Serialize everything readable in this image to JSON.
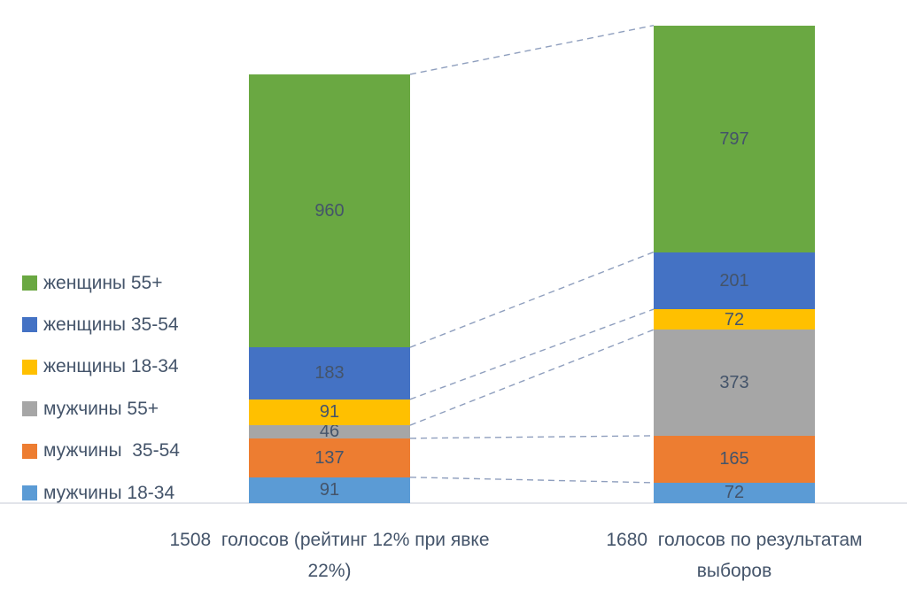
{
  "chart_data": {
    "type": "bar",
    "stacked": true,
    "orientation": "vertical",
    "grid": false,
    "legend_position": "left",
    "categories": [
      {
        "total": 1508,
        "label": "1508  голосов (рейтинг 12% при явке 22%)",
        "label_lines": [
          "1508  голосов (рейтинг 12% при явке",
          "22%)"
        ]
      },
      {
        "total": 1680,
        "label": "1680  голосов по результатам выборов",
        "label_lines": [
          "1680  голосов по результатам",
          "выборов"
        ]
      }
    ],
    "series_bottom_to_top": [
      {
        "name": "мужчины 18-34",
        "color": "#5b9bd5",
        "values": [
          91,
          72
        ]
      },
      {
        "name": "мужчины  35-54",
        "color": "#ed7d31",
        "values": [
          137,
          165
        ]
      },
      {
        "name": "мужчины 55+",
        "color": "#a6a6a6",
        "values": [
          46,
          373
        ]
      },
      {
        "name": "женщины 18-34",
        "color": "#ffc000",
        "values": [
          91,
          72
        ]
      },
      {
        "name": "женщины 35-54",
        "color": "#4472c4",
        "values": [
          183,
          201
        ]
      },
      {
        "name": "женщины 55+",
        "color": "#6aa842",
        "values": [
          960,
          797
        ]
      }
    ],
    "legend_order_top_to_bottom": [
      "женщины 55+",
      "женщины 35-54",
      "женщины 18-34",
      "мужчины 55+",
      "мужчины  35-54",
      "мужчины 18-34"
    ],
    "colors": {
      "label_text": "#44546a",
      "connector_line": "#8f9fbe",
      "axis_line": "#e2e4ea",
      "background": "#ffffff"
    }
  }
}
